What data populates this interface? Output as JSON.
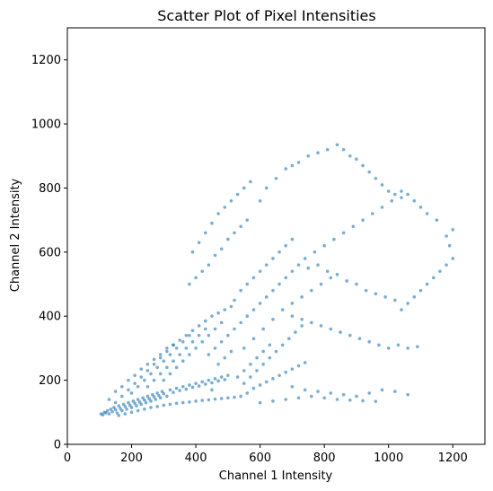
{
  "chart_data": {
    "type": "scatter",
    "title": "Scatter Plot of Pixel Intensities",
    "xlabel": "Channel 1 Intensity",
    "ylabel": "Channel 2 Intensity",
    "xlim": [
      0,
      1300
    ],
    "ylim": [
      0,
      1300
    ],
    "xticks": [
      0,
      200,
      400,
      600,
      800,
      1000,
      1200
    ],
    "yticks": [
      0,
      200,
      400,
      600,
      800,
      1000,
      1200
    ],
    "xtick_labels": [
      "0",
      "200",
      "400",
      "600",
      "800",
      "1000",
      "1200"
    ],
    "ytick_labels": [
      "0",
      "200",
      "400",
      "600",
      "800",
      "1000",
      "1200"
    ],
    "grid": false,
    "legend": "none",
    "point_color": "#1f77b4",
    "point_alpha": 0.6,
    "points": [
      [
        105,
        95
      ],
      [
        110,
        92
      ],
      [
        115,
        100
      ],
      [
        120,
        98
      ],
      [
        125,
        105
      ],
      [
        130,
        95
      ],
      [
        135,
        110
      ],
      [
        140,
        102
      ],
      [
        145,
        115
      ],
      [
        150,
        108
      ],
      [
        155,
        98
      ],
      [
        160,
        120
      ],
      [
        165,
        112
      ],
      [
        170,
        105
      ],
      [
        175,
        125
      ],
      [
        180,
        118
      ],
      [
        185,
        110
      ],
      [
        190,
        130
      ],
      [
        195,
        122
      ],
      [
        200,
        115
      ],
      [
        205,
        135
      ],
      [
        210,
        128
      ],
      [
        215,
        120
      ],
      [
        220,
        140
      ],
      [
        225,
        132
      ],
      [
        230,
        125
      ],
      [
        235,
        145
      ],
      [
        240,
        138
      ],
      [
        245,
        130
      ],
      [
        250,
        150
      ],
      [
        255,
        142
      ],
      [
        260,
        135
      ],
      [
        265,
        155
      ],
      [
        270,
        148
      ],
      [
        275,
        140
      ],
      [
        280,
        160
      ],
      [
        285,
        152
      ],
      [
        290,
        145
      ],
      [
        295,
        165
      ],
      [
        300,
        158
      ],
      [
        310,
        150
      ],
      [
        320,
        170
      ],
      [
        330,
        162
      ],
      [
        340,
        175
      ],
      [
        350,
        168
      ],
      [
        360,
        180
      ],
      [
        370,
        172
      ],
      [
        380,
        185
      ],
      [
        390,
        178
      ],
      [
        400,
        190
      ],
      [
        410,
        182
      ],
      [
        420,
        195
      ],
      [
        430,
        188
      ],
      [
        440,
        200
      ],
      [
        450,
        192
      ],
      [
        460,
        205
      ],
      [
        470,
        198
      ],
      [
        480,
        210
      ],
      [
        490,
        202
      ],
      [
        500,
        215
      ],
      [
        130,
        140
      ],
      [
        150,
        165
      ],
      [
        170,
        180
      ],
      [
        190,
        200
      ],
      [
        210,
        215
      ],
      [
        230,
        235
      ],
      [
        250,
        250
      ],
      [
        270,
        265
      ],
      [
        290,
        280
      ],
      [
        310,
        300
      ],
      [
        330,
        310
      ],
      [
        350,
        325
      ],
      [
        370,
        340
      ],
      [
        390,
        355
      ],
      [
        410,
        370
      ],
      [
        430,
        385
      ],
      [
        450,
        400
      ],
      [
        470,
        410
      ],
      [
        490,
        420
      ],
      [
        510,
        430
      ],
      [
        160,
        90
      ],
      [
        180,
        95
      ],
      [
        200,
        100
      ],
      [
        220,
        105
      ],
      [
        240,
        110
      ],
      [
        260,
        115
      ],
      [
        280,
        118
      ],
      [
        300,
        122
      ],
      [
        320,
        125
      ],
      [
        340,
        128
      ],
      [
        360,
        130
      ],
      [
        380,
        132
      ],
      [
        400,
        135
      ],
      [
        420,
        137
      ],
      [
        440,
        139
      ],
      [
        460,
        141
      ],
      [
        480,
        143
      ],
      [
        500,
        145
      ],
      [
        520,
        147
      ],
      [
        540,
        150
      ],
      [
        550,
        190
      ],
      [
        570,
        210
      ],
      [
        590,
        230
      ],
      [
        610,
        250
      ],
      [
        630,
        270
      ],
      [
        650,
        290
      ],
      [
        670,
        310
      ],
      [
        690,
        330
      ],
      [
        710,
        350
      ],
      [
        730,
        370
      ],
      [
        560,
        160
      ],
      [
        580,
        175
      ],
      [
        600,
        185
      ],
      [
        620,
        195
      ],
      [
        640,
        205
      ],
      [
        660,
        215
      ],
      [
        680,
        225
      ],
      [
        700,
        235
      ],
      [
        720,
        245
      ],
      [
        740,
        255
      ],
      [
        550,
        300
      ],
      [
        580,
        330
      ],
      [
        610,
        360
      ],
      [
        640,
        390
      ],
      [
        670,
        420
      ],
      [
        700,
        440
      ],
      [
        730,
        460
      ],
      [
        760,
        480
      ],
      [
        790,
        500
      ],
      [
        820,
        520
      ],
      [
        520,
        450
      ],
      [
        540,
        480
      ],
      [
        560,
        500
      ],
      [
        580,
        520
      ],
      [
        600,
        540
      ],
      [
        620,
        560
      ],
      [
        640,
        580
      ],
      [
        660,
        600
      ],
      [
        680,
        620
      ],
      [
        700,
        640
      ],
      [
        380,
        500
      ],
      [
        400,
        520
      ],
      [
        420,
        540
      ],
      [
        440,
        560
      ],
      [
        460,
        590
      ],
      [
        480,
        610
      ],
      [
        500,
        640
      ],
      [
        520,
        660
      ],
      [
        540,
        680
      ],
      [
        560,
        700
      ],
      [
        390,
        600
      ],
      [
        410,
        630
      ],
      [
        430,
        660
      ],
      [
        450,
        690
      ],
      [
        470,
        720
      ],
      [
        490,
        740
      ],
      [
        510,
        760
      ],
      [
        530,
        780
      ],
      [
        550,
        800
      ],
      [
        570,
        820
      ],
      [
        600,
        760
      ],
      [
        620,
        800
      ],
      [
        650,
        830
      ],
      [
        680,
        860
      ],
      [
        700,
        870
      ],
      [
        720,
        880
      ],
      [
        750,
        900
      ],
      [
        780,
        910
      ],
      [
        810,
        920
      ],
      [
        840,
        935
      ],
      [
        860,
        920
      ],
      [
        880,
        900
      ],
      [
        900,
        890
      ],
      [
        920,
        870
      ],
      [
        940,
        850
      ],
      [
        960,
        830
      ],
      [
        980,
        810
      ],
      [
        1000,
        790
      ],
      [
        1020,
        780
      ],
      [
        1040,
        770
      ],
      [
        750,
        550
      ],
      [
        780,
        560
      ],
      [
        810,
        540
      ],
      [
        840,
        530
      ],
      [
        870,
        510
      ],
      [
        900,
        500
      ],
      [
        930,
        480
      ],
      [
        960,
        470
      ],
      [
        990,
        460
      ],
      [
        1020,
        450
      ],
      [
        700,
        400
      ],
      [
        730,
        390
      ],
      [
        760,
        380
      ],
      [
        790,
        370
      ],
      [
        820,
        360
      ],
      [
        850,
        350
      ],
      [
        880,
        340
      ],
      [
        910,
        330
      ],
      [
        940,
        320
      ],
      [
        970,
        310
      ],
      [
        1000,
        300
      ],
      [
        1030,
        310
      ],
      [
        1060,
        300
      ],
      [
        1090,
        305
      ],
      [
        1040,
        420
      ],
      [
        1060,
        440
      ],
      [
        1080,
        460
      ],
      [
        1100,
        480
      ],
      [
        1120,
        500
      ],
      [
        1140,
        520
      ],
      [
        1160,
        540
      ],
      [
        1180,
        560
      ],
      [
        1200,
        580
      ],
      [
        1190,
        620
      ],
      [
        1180,
        650
      ],
      [
        1200,
        670
      ],
      [
        1150,
        700
      ],
      [
        1120,
        720
      ],
      [
        1100,
        740
      ],
      [
        1080,
        760
      ],
      [
        1060,
        780
      ],
      [
        1040,
        790
      ],
      [
        1010,
        760
      ],
      [
        980,
        740
      ],
      [
        950,
        720
      ],
      [
        920,
        700
      ],
      [
        890,
        680
      ],
      [
        860,
        660
      ],
      [
        830,
        640
      ],
      [
        800,
        620
      ],
      [
        770,
        600
      ],
      [
        740,
        580
      ],
      [
        720,
        560
      ],
      [
        700,
        540
      ],
      [
        680,
        520
      ],
      [
        660,
        500
      ],
      [
        640,
        480
      ],
      [
        620,
        460
      ],
      [
        600,
        440
      ],
      [
        580,
        420
      ],
      [
        560,
        400
      ],
      [
        540,
        380
      ],
      [
        520,
        360
      ],
      [
        500,
        340
      ],
      [
        480,
        320
      ],
      [
        460,
        300
      ],
      [
        440,
        280
      ],
      [
        700,
        180
      ],
      [
        740,
        170
      ],
      [
        780,
        165
      ],
      [
        820,
        160
      ],
      [
        860,
        155
      ],
      [
        900,
        150
      ],
      [
        940,
        160
      ],
      [
        980,
        170
      ],
      [
        1020,
        165
      ],
      [
        1060,
        155
      ],
      [
        600,
        130
      ],
      [
        640,
        135
      ],
      [
        680,
        140
      ],
      [
        720,
        145
      ],
      [
        760,
        150
      ],
      [
        800,
        145
      ],
      [
        840,
        140
      ],
      [
        880,
        138
      ],
      [
        920,
        136
      ],
      [
        960,
        134
      ],
      [
        450,
        170
      ],
      [
        470,
        250
      ],
      [
        490,
        270
      ],
      [
        510,
        290
      ],
      [
        530,
        210
      ],
      [
        550,
        230
      ],
      [
        570,
        250
      ],
      [
        590,
        270
      ],
      [
        610,
        290
      ],
      [
        630,
        310
      ],
      [
        300,
        200
      ],
      [
        320,
        220
      ],
      [
        340,
        240
      ],
      [
        360,
        260
      ],
      [
        380,
        280
      ],
      [
        400,
        300
      ],
      [
        420,
        320
      ],
      [
        440,
        340
      ],
      [
        460,
        360
      ],
      [
        480,
        380
      ],
      [
        250,
        180
      ],
      [
        270,
        200
      ],
      [
        290,
        220
      ],
      [
        310,
        240
      ],
      [
        330,
        260
      ],
      [
        350,
        280
      ],
      [
        370,
        300
      ],
      [
        390,
        320
      ],
      [
        410,
        340
      ],
      [
        430,
        360
      ],
      [
        200,
        160
      ],
      [
        220,
        180
      ],
      [
        240,
        200
      ],
      [
        260,
        220
      ],
      [
        280,
        240
      ],
      [
        300,
        260
      ],
      [
        320,
        280
      ],
      [
        340,
        300
      ],
      [
        360,
        320
      ],
      [
        380,
        340
      ],
      [
        150,
        130
      ],
      [
        170,
        150
      ],
      [
        190,
        170
      ],
      [
        210,
        190
      ],
      [
        230,
        210
      ],
      [
        250,
        230
      ],
      [
        270,
        250
      ],
      [
        290,
        270
      ],
      [
        310,
        290
      ],
      [
        330,
        310
      ]
    ]
  }
}
